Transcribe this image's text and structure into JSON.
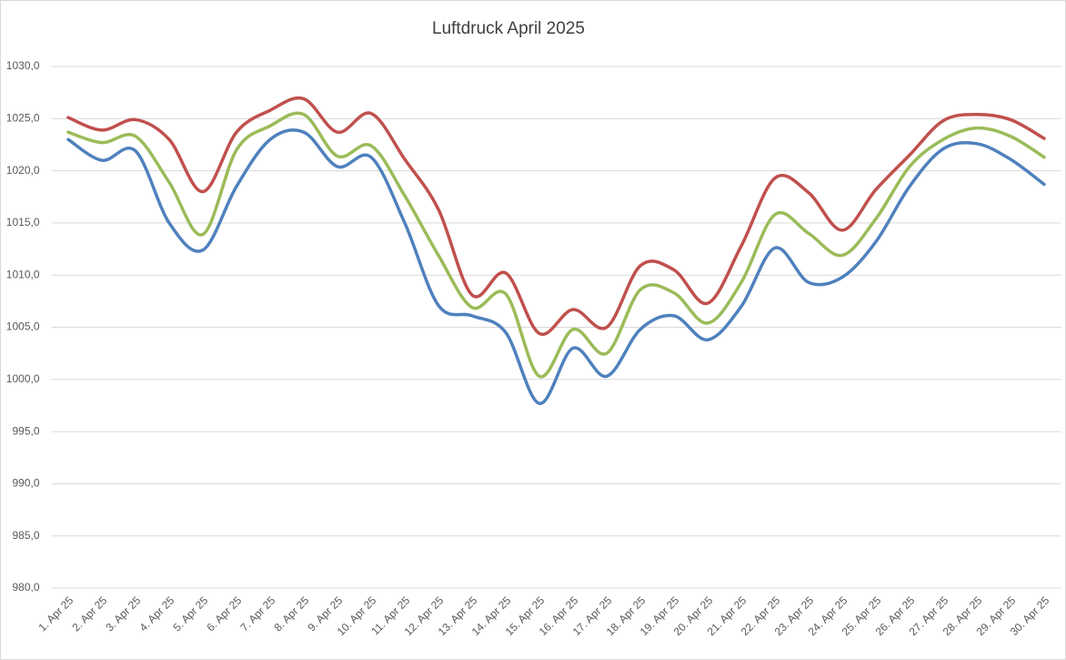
{
  "chart_data": {
    "type": "line",
    "title": "Luftdruck April 2025",
    "categories": [
      "1. Apr 25",
      "2. Apr 25",
      "3. Apr 25",
      "4. Apr 25",
      "5. Apr 25",
      "6. Apr 25",
      "7. Apr 25",
      "8. Apr 25",
      "9. Apr 25",
      "10. Apr 25",
      "11. Apr 25",
      "12. Apr 25",
      "13. Apr 25",
      "14. Apr 25",
      "15. Apr 25",
      "16. Apr 25",
      "17. Apr 25",
      "18. Apr 25",
      "19. Apr 25",
      "20. Apr 25",
      "21. Apr 25",
      "22. Apr 25",
      "23. Apr 25",
      "24. Apr 25",
      "25. Apr 25",
      "26. Apr 25",
      "27. Apr 25",
      "28. Apr 25",
      "29. Apr 25",
      "30. Apr 25"
    ],
    "series": [
      {
        "color": "#4f81bd",
        "values": [
          1023.0,
          1021.0,
          1021.9,
          1015.0,
          1012.4,
          1018.5,
          1023.0,
          1023.7,
          1020.4,
          1021.3,
          1015.0,
          1007.1,
          1006.1,
          1004.5,
          997.7,
          1003.0,
          1000.3,
          1004.8,
          1006.1,
          1003.8,
          1007.0,
          1012.6,
          1009.3,
          1009.8,
          1013.2,
          1018.5,
          1022.1,
          1022.6,
          1021.1,
          1018.7
        ]
      },
      {
        "color": "#c0504d",
        "values": [
          1025.1,
          1023.9,
          1024.9,
          1023.0,
          1018.0,
          1023.7,
          1025.8,
          1026.9,
          1023.7,
          1025.5,
          1021.1,
          1016.3,
          1008.1,
          1010.2,
          1004.4,
          1006.7,
          1005.0,
          1010.9,
          1010.5,
          1007.3,
          1012.8,
          1019.3,
          1017.9,
          1014.3,
          1018.2,
          1021.5,
          1024.8,
          1025.4,
          1024.9,
          1023.1
        ]
      },
      {
        "color": "#9bbb59",
        "values": [
          1023.7,
          1022.7,
          1023.3,
          1018.9,
          1013.9,
          1022.0,
          1024.3,
          1025.4,
          1021.4,
          1022.4,
          1017.6,
          1011.9,
          1006.9,
          1008.2,
          1000.3,
          1004.8,
          1002.5,
          1008.6,
          1008.3,
          1005.4,
          1009.3,
          1015.8,
          1014.0,
          1011.9,
          1015.4,
          1020.4,
          1023.0,
          1024.1,
          1023.3,
          1021.3
        ]
      }
    ],
    "ylim": [
      980,
      1030
    ],
    "yticks": [
      {
        "value": 980,
        "label": "980,0"
      },
      {
        "value": 985,
        "label": "985,0"
      },
      {
        "value": 990,
        "label": "990,0"
      },
      {
        "value": 995,
        "label": "995,0"
      },
      {
        "value": 1000,
        "label": "1000,0"
      },
      {
        "value": 1005,
        "label": "1005,0"
      },
      {
        "value": 1010,
        "label": "1010,0"
      },
      {
        "value": 1015,
        "label": "1015,0"
      },
      {
        "value": 1020,
        "label": "1020,0"
      },
      {
        "value": 1025,
        "label": "1025,0"
      },
      {
        "value": 1030,
        "label": "1030,0"
      }
    ],
    "grid": true,
    "smooth": true
  }
}
